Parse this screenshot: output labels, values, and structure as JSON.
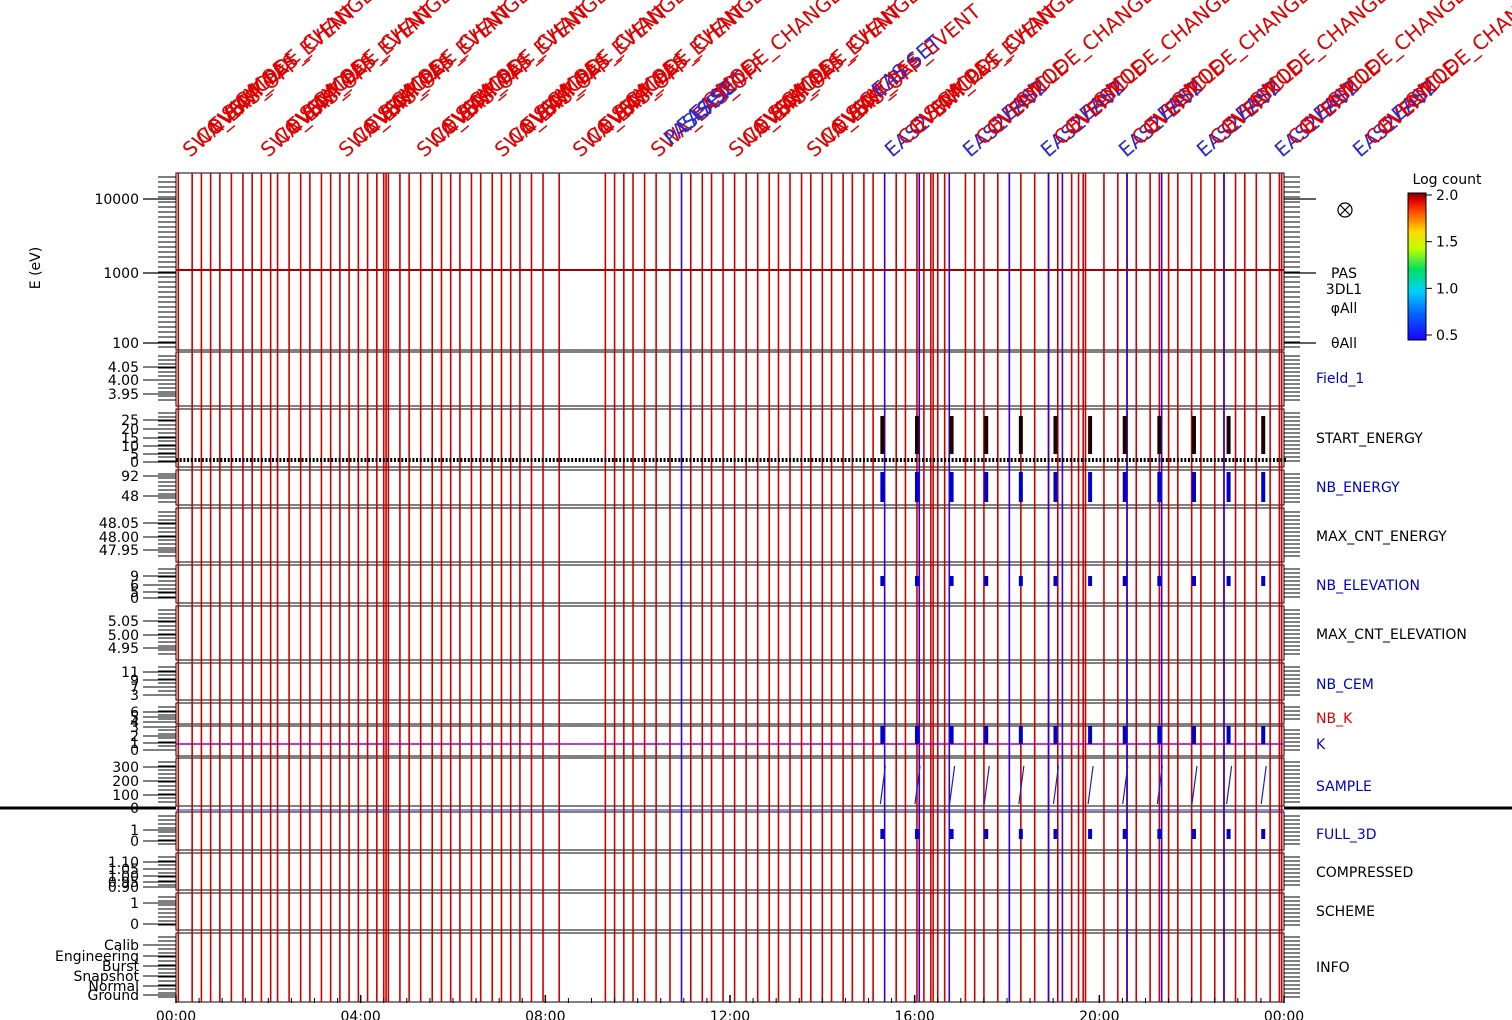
{
  "chart_data": {
    "type": "line",
    "title": "",
    "time_axis": {
      "ticks": [
        "00:00",
        "04:00",
        "08:00",
        "12:00",
        "16:00",
        "20:00",
        "00:00"
      ],
      "range_hours": [
        0,
        24
      ]
    },
    "energy_panel": {
      "ylabel": "E (eV)",
      "log_scale": true,
      "ticks": [
        "10000",
        "1000",
        "100"
      ],
      "ylim": [
        100,
        20000
      ],
      "side_label": [
        "PAS",
        "3DL1",
        "φAll",
        "θAll"
      ]
    },
    "colorbar": {
      "label": "Log count",
      "ticks": [
        "2.0",
        "1.5",
        "1.0",
        "0.5"
      ],
      "range": [
        0.5,
        2.0
      ]
    },
    "panels": [
      {
        "name": "Field_1",
        "color": "#0000cc",
        "ticks": [
          "4.05",
          "4.00",
          "3.95"
        ]
      },
      {
        "name": "START_ENERGY",
        "color": "#000000",
        "ticks": [
          "25",
          "20",
          "15",
          "10",
          "5",
          "0"
        ]
      },
      {
        "name": "NB_ENERGY",
        "color": "#0000cc",
        "ticks": [
          "92",
          "48"
        ]
      },
      {
        "name": "MAX_CNT_ENERGY",
        "color": "#000000",
        "ticks": [
          "48.05",
          "48.00",
          "47.95"
        ]
      },
      {
        "name": "NB_ELEVATION",
        "color": "#0000cc",
        "ticks": [
          "9",
          "6",
          "5",
          "0"
        ]
      },
      {
        "name": "MAX_CNT_ELEVATION",
        "color": "#000000",
        "ticks": [
          "5.05",
          "5.00",
          "4.95"
        ]
      },
      {
        "name": "NB_CEM",
        "color": "#0000cc",
        "ticks": [
          "11",
          "9",
          "7",
          "3"
        ]
      },
      {
        "name": "NB_K",
        "color": "#dd0000",
        "ticks": [
          "6",
          "5",
          "4",
          "3"
        ]
      },
      {
        "name": "K",
        "color": "#0000cc",
        "ticks": [
          "2",
          "1",
          "0"
        ]
      },
      {
        "name": "SAMPLE",
        "color": "#0000cc",
        "ticks": [
          "300",
          "200",
          "100",
          "0"
        ]
      },
      {
        "name": "FULL_3D",
        "color": "#0000cc",
        "ticks": [
          "1",
          "0"
        ]
      },
      {
        "name": "COMPRESSED",
        "color": "#000000",
        "ticks": [
          "1.10",
          "1.05",
          "1.00",
          "0.95",
          "0.90"
        ]
      },
      {
        "name": "SCHEME",
        "color": "#000000",
        "ticks": [
          "1",
          "0"
        ]
      },
      {
        "name": "INFO",
        "color": "#000000",
        "ticks": [
          "Calib",
          "Engineering",
          "Burst",
          "Snapshot",
          "Normal",
          "Ground"
        ]
      }
    ],
    "event_labels": {
      "red_samples": [
        "SWA_EAS_OFF",
        "COVER",
        "EVENT",
        "SWA_PAS_EVENT",
        "CYCLE",
        "MODE_CHANGE"
      ],
      "blue_samples": [
        "EAS2",
        "PAS SET",
        "EAS SET"
      ]
    },
    "event_times_hours": {
      "red": [
        0.05,
        0.35,
        0.55,
        0.75,
        0.95,
        1.2,
        1.45,
        1.65,
        1.85,
        2.05,
        2.2,
        2.45,
        2.7,
        2.9,
        3.15,
        3.35,
        3.55,
        3.75,
        3.95,
        4.15,
        4.35,
        4.5,
        4.55,
        4.6,
        4.85,
        5.05,
        5.3,
        5.55,
        5.75,
        5.95,
        6.15,
        6.4,
        6.6,
        6.85,
        7.05,
        7.25,
        7.45,
        7.7,
        7.95,
        8.3,
        9.3,
        9.5,
        9.7,
        9.9,
        10.15,
        10.4,
        10.7,
        11.15,
        11.4,
        11.6,
        11.85,
        12.1,
        12.35,
        12.6,
        12.85,
        13.05,
        13.3,
        13.55,
        13.75,
        14.0,
        14.2,
        14.45,
        14.65,
        14.9,
        15.1,
        15.6,
        15.8,
        16.05,
        16.2,
        16.35,
        16.4,
        16.5,
        16.65,
        17.1,
        17.3,
        17.5,
        17.8,
        18.05,
        18.3,
        18.6,
        18.9,
        19.1,
        19.4,
        19.55,
        19.65,
        19.7,
        20.1,
        20.4,
        20.6,
        20.8,
        21.1,
        21.3,
        21.5,
        21.7,
        22.0,
        22.2,
        22.5,
        22.7,
        22.95,
        23.15,
        23.4,
        23.7,
        23.9,
        23.95
      ],
      "blue": [
        10.95,
        15.35,
        16.1,
        16.75,
        18.05,
        18.9,
        19.2,
        20.6,
        21.35,
        22.7
      ]
    },
    "sample_events_hours": [
      15.3,
      16.05,
      16.8,
      17.55,
      18.3,
      19.05,
      19.8,
      20.55,
      21.3,
      22.05,
      22.8,
      23.55
    ]
  }
}
